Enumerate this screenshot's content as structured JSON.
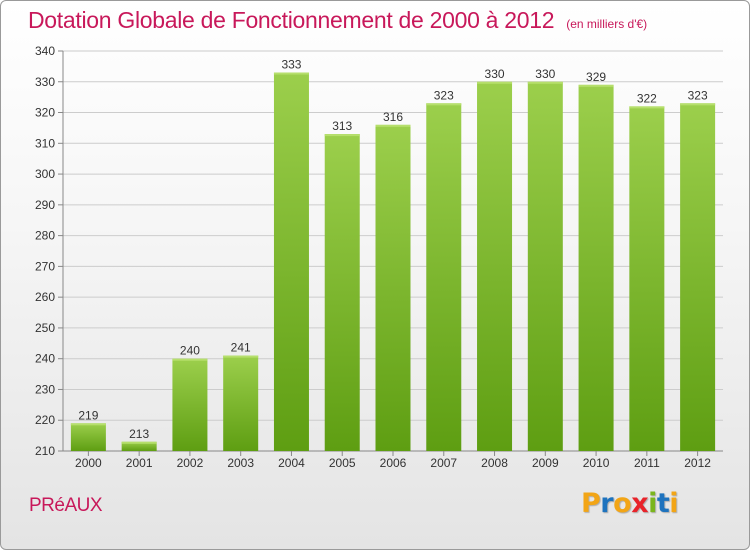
{
  "chart_data": {
    "type": "bar",
    "title": "Dotation Globale de Fonctionnement de 2000 à 2012",
    "subtitle": "(en milliers d'€)",
    "categories": [
      "2000",
      "2001",
      "2002",
      "2003",
      "2004",
      "2005",
      "2006",
      "2007",
      "2008",
      "2009",
      "2010",
      "2011",
      "2012"
    ],
    "values": [
      219,
      213,
      240,
      241,
      333,
      313,
      316,
      323,
      330,
      330,
      329,
      322,
      323
    ],
    "ylim": [
      210,
      340
    ],
    "yticks": [
      210,
      220,
      230,
      240,
      250,
      260,
      270,
      280,
      290,
      300,
      310,
      320,
      330,
      340
    ],
    "grid": true,
    "bar_color_top": "#9ccf4c",
    "bar_color_bottom": "#5e9e12"
  },
  "commune": "PRéAUX",
  "logo": {
    "letters": [
      "P",
      "r",
      "o",
      "x",
      "i",
      "t",
      "i"
    ],
    "colors": [
      "#f2a516",
      "#1e73be",
      "#f2a516",
      "#e8232a",
      "#7ab51d",
      "#1e73be",
      "#f2a516"
    ]
  }
}
